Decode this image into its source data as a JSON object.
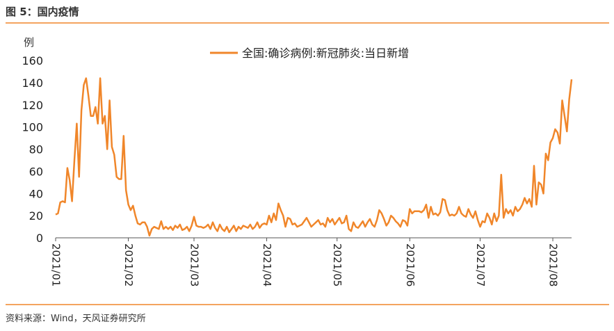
{
  "chart_data": {
    "type": "line",
    "header": "图 5：国内疫情",
    "y_unit": "例",
    "source": "资料来源：Wind，天风证券研究所",
    "ylim": [
      0,
      160
    ],
    "yticks": [
      0,
      20,
      40,
      60,
      80,
      100,
      120,
      140,
      160
    ],
    "categories": [
      "2021/01",
      null,
      null,
      null,
      null,
      null,
      null,
      null,
      null,
      null,
      null,
      null,
      null,
      null,
      null,
      null,
      null,
      null,
      null,
      null,
      null,
      null,
      null,
      null,
      null,
      null,
      null,
      null,
      null,
      null,
      null,
      "2021/02",
      null,
      null,
      null,
      null,
      null,
      null,
      null,
      null,
      null,
      null,
      null,
      null,
      null,
      null,
      null,
      null,
      null,
      null,
      null,
      null,
      null,
      null,
      null,
      null,
      null,
      null,
      null,
      "2021/03",
      null,
      null,
      null,
      null,
      null,
      null,
      null,
      null,
      null,
      null,
      null,
      null,
      null,
      null,
      null,
      null,
      null,
      null,
      null,
      null,
      null,
      null,
      null,
      null,
      null,
      null,
      null,
      null,
      null,
      null,
      "2021/04",
      null,
      null,
      null,
      null,
      null,
      null,
      null,
      null,
      null,
      null,
      null,
      null,
      null,
      null,
      null,
      null,
      null,
      null,
      null,
      null,
      null,
      null,
      null,
      null,
      null,
      null,
      null,
      null,
      null,
      "2021/05",
      null,
      null,
      null,
      null,
      null,
      null,
      null,
      null,
      null,
      null,
      null,
      null,
      null,
      null,
      null,
      null,
      null,
      null,
      null,
      null,
      null,
      null,
      null,
      null,
      null,
      null,
      null,
      null,
      null,
      null,
      "2021/06",
      null,
      null,
      null,
      null,
      null,
      null,
      null,
      null,
      null,
      null,
      null,
      null,
      null,
      null,
      null,
      null,
      null,
      null,
      null,
      null,
      null,
      null,
      null,
      null,
      null,
      null,
      null,
      null,
      null,
      "2021/07",
      null,
      null,
      null,
      null,
      null,
      null,
      null,
      null,
      null,
      null,
      null,
      null,
      null,
      null,
      null,
      null,
      null,
      null,
      null,
      null,
      null,
      null,
      null,
      null,
      null,
      null,
      null,
      null,
      null,
      null,
      "2021/08",
      null,
      null,
      null,
      null,
      null,
      null,
      null,
      null
    ],
    "series": [
      {
        "name": "全国:确诊病例:新冠肺炎:当日新增",
        "color": "#f0862a",
        "values": [
          21,
          22,
          32,
          33,
          32,
          63,
          52,
          33,
          70,
          103,
          55,
          115,
          138,
          144,
          128,
          110,
          110,
          118,
          103,
          144,
          103,
          110,
          80,
          124,
          82,
          75,
          55,
          53,
          53,
          92,
          43,
          30,
          25,
          29,
          20,
          13,
          12,
          14,
          14,
          10,
          2,
          8,
          10,
          9,
          8,
          15,
          8,
          10,
          8,
          10,
          7,
          11,
          9,
          12,
          7,
          8,
          10,
          6,
          11,
          19,
          11,
          10,
          10,
          9,
          10,
          12,
          8,
          14,
          9,
          6,
          12,
          8,
          6,
          10,
          5,
          8,
          11,
          6,
          10,
          8,
          11,
          10,
          9,
          12,
          8,
          10,
          14,
          9,
          12,
          13,
          12,
          20,
          14,
          22,
          16,
          31,
          25,
          20,
          10,
          18,
          17,
          12,
          13,
          10,
          11,
          12,
          15,
          18,
          14,
          10,
          12,
          14,
          16,
          12,
          13,
          10,
          18,
          14,
          17,
          12,
          15,
          18,
          13,
          14,
          20,
          8,
          6,
          14,
          10,
          9,
          12,
          15,
          10,
          14,
          17,
          12,
          10,
          16,
          25,
          22,
          17,
          11,
          14,
          20,
          18,
          15,
          13,
          10,
          16,
          15,
          11,
          26,
          22,
          24,
          24,
          24,
          23,
          25,
          30,
          18,
          28,
          21,
          22,
          20,
          23,
          35,
          34,
          25,
          20,
          21,
          20,
          22,
          28,
          22,
          20,
          19,
          26,
          21,
          18,
          24,
          16,
          10,
          15,
          14,
          22,
          18,
          12,
          22,
          15,
          20,
          57,
          18,
          26,
          22,
          25,
          20,
          28,
          24,
          26,
          30,
          36,
          31,
          35,
          28,
          65,
          30,
          50,
          48,
          40,
          76,
          70,
          86,
          90,
          98,
          95,
          85,
          124,
          110,
          96,
          125,
          143
        ]
      }
    ]
  }
}
